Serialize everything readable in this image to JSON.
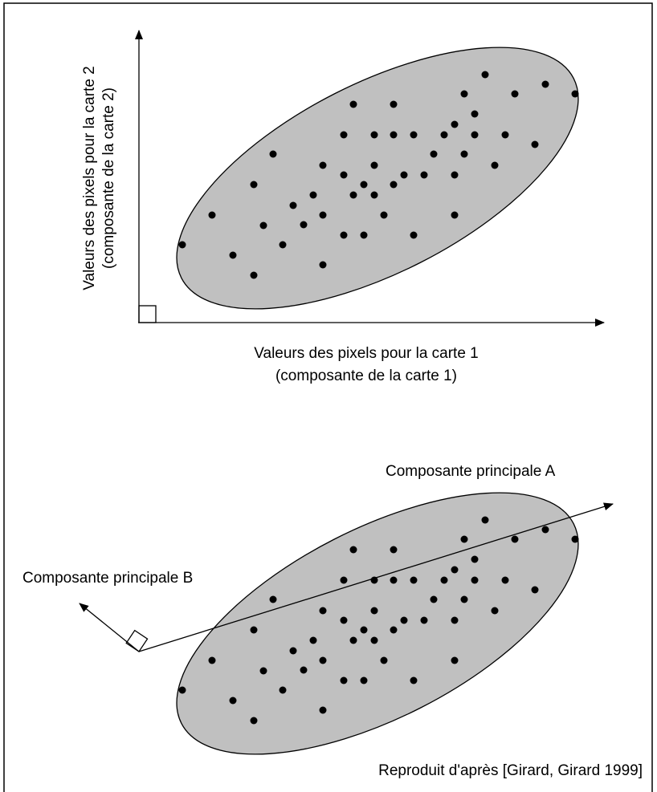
{
  "top": {
    "y_axis_label": [
      "Valeurs des pixels pour la carte 2",
      "(composante de la carte 2)"
    ],
    "x_axis_label": [
      "Valeurs des pixels pour la carte 1",
      "(composante de la carte 1)"
    ]
  },
  "bottom": {
    "axis_a_label": "Composante principale A",
    "axis_b_label": "Composante principale B"
  },
  "source": "Reproduit d'après [Girard, Girard 1999]"
}
